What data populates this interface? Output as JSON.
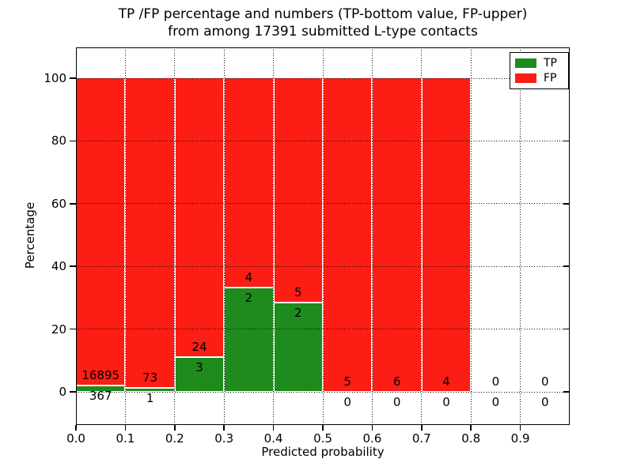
{
  "figure": {
    "title_line1": "TP /FP percentage and numbers (TP-bottom value, FP-upper)",
    "title_line2": "from among 17391 submitted L-type contacts"
  },
  "axes": {
    "xlabel": "Predicted probability",
    "ylabel": "Percentage",
    "xtick_labels": [
      "0.0",
      "0.1",
      "0.2",
      "0.3",
      "0.4",
      "0.5",
      "0.6",
      "0.7",
      "0.8",
      "0.9"
    ],
    "xtick_values": [
      0.0,
      0.1,
      0.2,
      0.3,
      0.4,
      0.5,
      0.6,
      0.7,
      0.8,
      0.9
    ],
    "ytick_labels": [
      "0",
      "20",
      "40",
      "60",
      "80",
      "100"
    ],
    "ytick_values": [
      0,
      20,
      40,
      60,
      80,
      100
    ],
    "xlim": [
      0.0,
      1.0
    ],
    "ylim": [
      -10.6,
      109.8
    ],
    "grid_style": "dotted"
  },
  "legend": {
    "position": "upper-right",
    "items": [
      {
        "label": "TP",
        "color": "#1f8b1f"
      },
      {
        "label": "FP",
        "color": "#fc1d14"
      }
    ]
  },
  "chart_data": {
    "type": "bar",
    "stacked": true,
    "normalized_to_percent": 100,
    "total_submitted": 17391,
    "bin_width": 0.1,
    "bin_starts": [
      0.0,
      0.1,
      0.2,
      0.3,
      0.4,
      0.5,
      0.6,
      0.7,
      0.8,
      0.9
    ],
    "bar_edge_color": "#ffffff",
    "series": [
      {
        "name": "TP",
        "color": "#1f8b1f",
        "counts": [
          367,
          1,
          3,
          2,
          2,
          0,
          0,
          0,
          0,
          0
        ],
        "percent": [
          2.13,
          1.35,
          11.11,
          33.33,
          28.57,
          0,
          0,
          0,
          null,
          null
        ]
      },
      {
        "name": "FP",
        "color": "#fc1d14",
        "counts": [
          16895,
          73,
          24,
          4,
          5,
          5,
          6,
          4,
          0,
          0
        ],
        "percent": [
          97.87,
          98.65,
          88.89,
          66.67,
          71.43,
          100,
          100,
          100,
          null,
          null
        ]
      }
    ],
    "title": "TP /FP percentage and numbers (TP-bottom value, FP-upper) from among 17391 submitted L-type contacts",
    "xlabel": "Predicted probability",
    "ylabel": "Percentage"
  }
}
